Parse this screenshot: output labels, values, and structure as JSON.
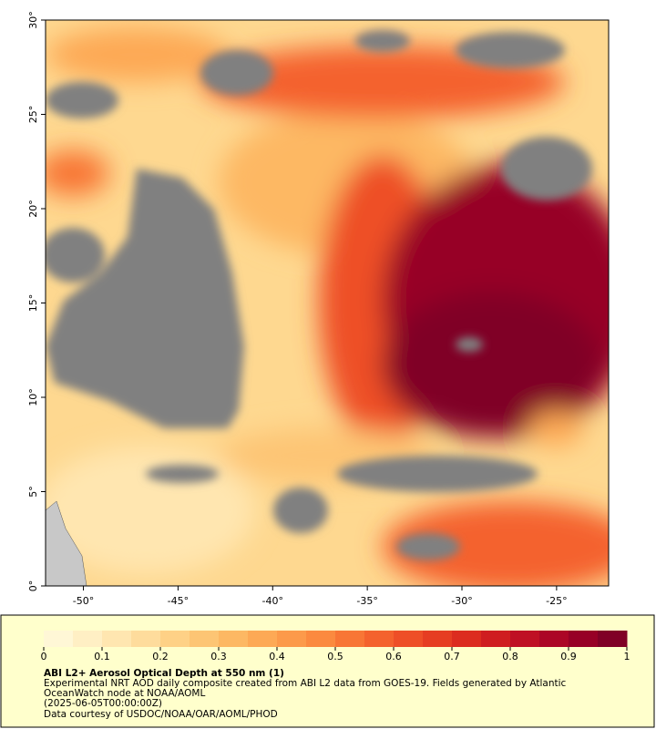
{
  "map": {
    "xlim": [
      -52,
      -22.25
    ],
    "ylim": [
      0,
      30
    ],
    "xticks": [
      {
        "value": -50,
        "label": "-50°"
      },
      {
        "value": -45,
        "label": "-45°"
      },
      {
        "value": -40,
        "label": "-40°"
      },
      {
        "value": -35,
        "label": "-35°"
      },
      {
        "value": -30,
        "label": "-30°"
      },
      {
        "value": -25,
        "label": "-25°"
      }
    ],
    "yticks": [
      {
        "value": 0,
        "label": "0°"
      },
      {
        "value": 5,
        "label": "5°"
      },
      {
        "value": 10,
        "label": "10°"
      },
      {
        "value": 15,
        "label": "15°"
      },
      {
        "value": 20,
        "label": "20°"
      },
      {
        "value": 25,
        "label": "25°"
      },
      {
        "value": 30,
        "label": "30°"
      }
    ]
  },
  "colorbar": {
    "lim": [
      0,
      1
    ],
    "ticks": [
      0,
      0.1,
      0.2,
      0.3,
      0.4,
      0.5,
      0.6,
      0.7,
      0.8,
      0.9,
      1
    ],
    "colors": [
      "#fff7d6",
      "#ffefc4",
      "#ffe6b0",
      "#fedc9c",
      "#fed186",
      "#fdc574",
      "#fdb863",
      "#fda955",
      "#fc9a4a",
      "#fb8a3f",
      "#f87635",
      "#f4622d",
      "#ee4f27",
      "#e63d22",
      "#dc2c1f",
      "#cf1d20",
      "#bf1024",
      "#ac0626",
      "#970026",
      "#800026"
    ]
  },
  "caption": {
    "title": "ABI L2+ Aerosol Optical Depth at 550 nm (1)",
    "description": [
      "Experimental NRT AOD daily composite created from ABI L2 data from GOES-19. Fields generated by Atlantic",
      "OceanWatch node at NOAA/AOML"
    ],
    "date": "(2025-06-05T00:00:00Z)",
    "credit": "Data courtesy of USDOC/NOAA/OAR/AOML/PHOD"
  }
}
